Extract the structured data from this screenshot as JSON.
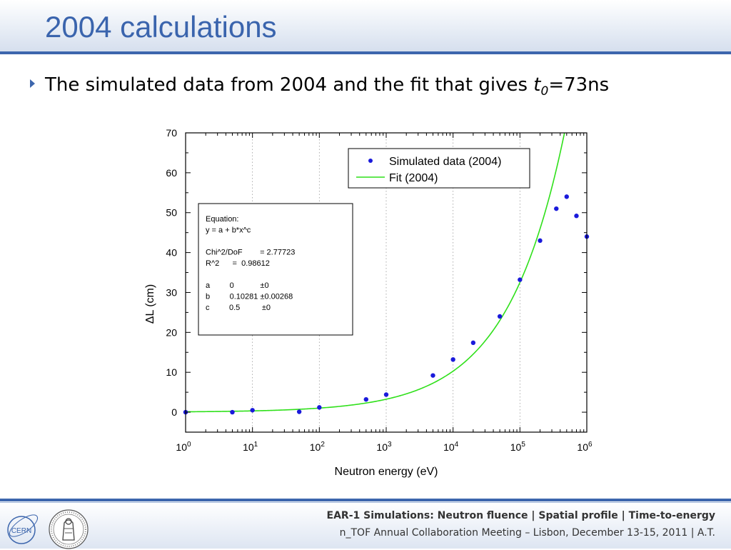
{
  "slide": {
    "title": "2004 calculations",
    "bullet": {
      "text_before": "The simulated data from 2004 and the fit that gives ",
      "var_t": "t",
      "var_sub": "0",
      "text_after": "=73ns"
    }
  },
  "chart_data": {
    "type": "scatter",
    "xlabel": "Neutron energy (eV)",
    "ylabel_delta": "Δ",
    "ylabel_rest": "L (cm)",
    "xscale": "log",
    "xlim": [
      1,
      1000000
    ],
    "ylim": [
      -5,
      70
    ],
    "x_ticks": [
      {
        "base": "10",
        "exp": "0"
      },
      {
        "base": "10",
        "exp": "1"
      },
      {
        "base": "10",
        "exp": "2"
      },
      {
        "base": "10",
        "exp": "3"
      },
      {
        "base": "10",
        "exp": "4"
      },
      {
        "base": "10",
        "exp": "5"
      },
      {
        "base": "10",
        "exp": "6"
      }
    ],
    "y_ticks": [
      0,
      10,
      20,
      30,
      40,
      50,
      60,
      70
    ],
    "grid": "dotted vertical at decades",
    "legend_position": "top-right",
    "series": [
      {
        "name": "Simulated data (2004)",
        "kind": "points",
        "color": "#1a1adb",
        "x": [
          1,
          5,
          10,
          50,
          100,
          500,
          1000,
          5000,
          10000,
          20000,
          50000,
          100000,
          200000,
          350000,
          500000,
          700000,
          1000000
        ],
        "y": [
          0,
          0,
          0.5,
          0.1,
          1.2,
          3.2,
          4.4,
          9.2,
          13.2,
          17.4,
          24.0,
          33.2,
          43.0,
          51.0,
          54.0,
          49.2,
          44.0
        ]
      },
      {
        "name": "Fit (2004)",
        "kind": "line",
        "color": "#2fe01a",
        "model": "y = a + b*x^c",
        "params": {
          "a": 0,
          "b": 0.10281,
          "c": 0.5
        }
      }
    ],
    "equation_box": {
      "lines": [
        "Equation:",
        "y = a + b*x^c",
        "",
        "Chi^2/DoF        = 2.77723",
        "R^2      =  0.98612",
        "",
        "a         0            ±0",
        "b         0.10281 ±0.00268",
        "c         0.5          ±0"
      ]
    }
  },
  "footer": {
    "line1": "EAR-1 Simulations: Neutron fluence | Spatial profile | Time-to-energy",
    "line2": "n_TOF Annual Collaboration Meeting – Lisbon, December 13-15, 2011 | A.T.",
    "cern_logo_text": "CERN"
  }
}
